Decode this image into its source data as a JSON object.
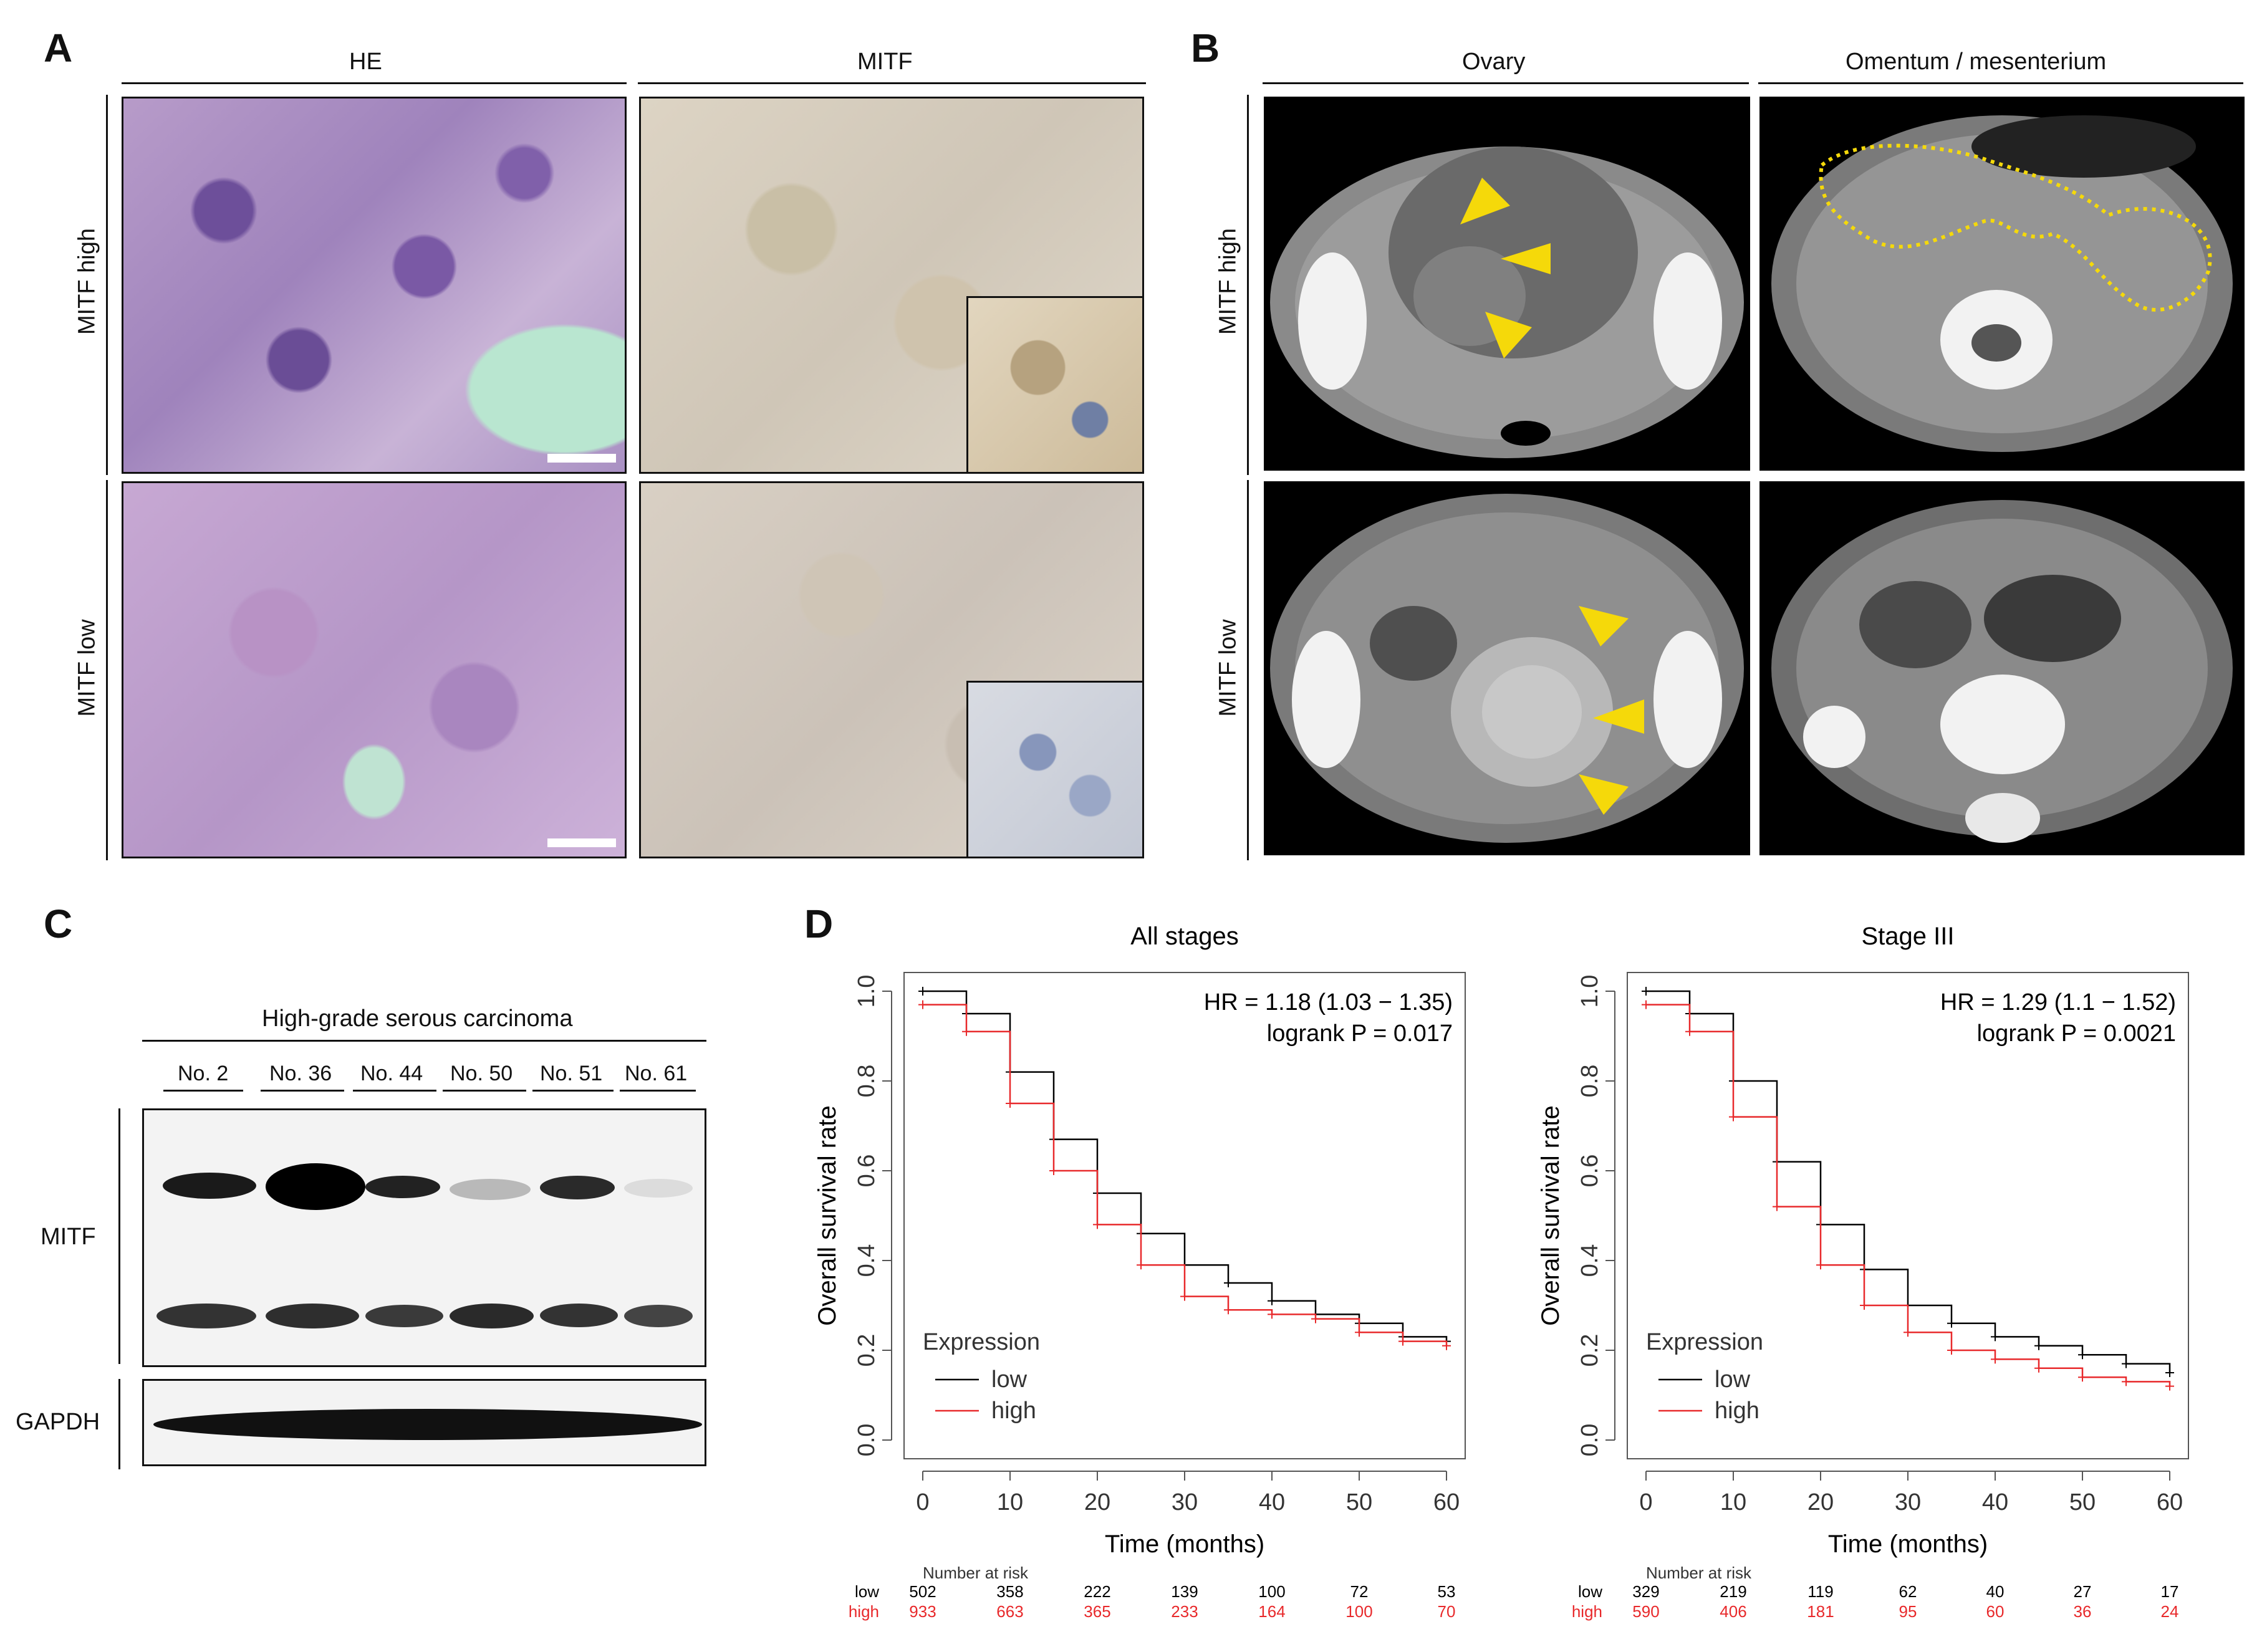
{
  "panels": {
    "a": {
      "letter": "A",
      "col_headers": [
        "HE",
        "MITF"
      ],
      "row_labels": [
        "MITF high",
        "MITF low"
      ]
    },
    "b": {
      "letter": "B",
      "col_headers": [
        "Ovary",
        "Omentum / mesenterium"
      ],
      "row_labels": [
        "MITF high",
        "MITF low"
      ]
    },
    "c": {
      "letter": "C",
      "header": "High-grade serous carcinoma",
      "samples": [
        "No. 2",
        "No. 36",
        "No. 44",
        "No. 50",
        "No. 51",
        "No. 61"
      ],
      "mitf_label": "MITF",
      "gapdh_label": "GAPDH"
    },
    "d": {
      "letter": "D"
    }
  },
  "chart_data": [
    {
      "type": "line",
      "title": "All stages",
      "xlabel": "Time (months)",
      "ylabel": "Overall survival rate",
      "xlim": [
        0,
        60
      ],
      "ylim": [
        0,
        1
      ],
      "xticks": [
        "0",
        "10",
        "20",
        "30",
        "40",
        "50",
        "60"
      ],
      "yticks": [
        "0.0",
        "0.2",
        "0.4",
        "0.6",
        "0.8",
        "1.0"
      ],
      "hr_text": "HR = 1.18 (1.03 − 1.35)",
      "p_text": "logrank P = 0.017",
      "legend_title": "Expression",
      "series": [
        {
          "name": "low",
          "color": "#000000",
          "x": [
            0,
            5,
            10,
            15,
            20,
            25,
            30,
            35,
            40,
            45,
            50,
            55,
            60
          ],
          "y": [
            1.0,
            0.95,
            0.82,
            0.67,
            0.55,
            0.46,
            0.39,
            0.35,
            0.31,
            0.28,
            0.26,
            0.23,
            0.22
          ]
        },
        {
          "name": "high",
          "color": "#e8292b",
          "x": [
            0,
            5,
            10,
            15,
            20,
            25,
            30,
            35,
            40,
            45,
            50,
            55,
            60
          ],
          "y": [
            0.97,
            0.91,
            0.75,
            0.6,
            0.48,
            0.39,
            0.32,
            0.29,
            0.28,
            0.27,
            0.24,
            0.22,
            0.21
          ]
        }
      ],
      "risk_header": "Number at risk",
      "risk_rows": [
        {
          "name": "low",
          "values": [
            "502",
            "358",
            "222",
            "139",
            "100",
            "72",
            "53"
          ]
        },
        {
          "name": "high",
          "values": [
            "933",
            "663",
            "365",
            "233",
            "164",
            "100",
            "70"
          ]
        }
      ]
    },
    {
      "type": "line",
      "title": "Stage III",
      "xlabel": "Time (months)",
      "ylabel": "Overall survival rate",
      "xlim": [
        0,
        60
      ],
      "ylim": [
        0,
        1
      ],
      "xticks": [
        "0",
        "10",
        "20",
        "30",
        "40",
        "50",
        "60"
      ],
      "yticks": [
        "0.0",
        "0.2",
        "0.4",
        "0.6",
        "0.8",
        "1.0"
      ],
      "hr_text": "HR = 1.29 (1.1 − 1.52)",
      "p_text": "logrank P = 0.0021",
      "legend_title": "Expression",
      "series": [
        {
          "name": "low",
          "color": "#000000",
          "x": [
            0,
            5,
            10,
            15,
            20,
            25,
            30,
            35,
            40,
            45,
            50,
            55,
            60
          ],
          "y": [
            1.0,
            0.95,
            0.8,
            0.62,
            0.48,
            0.38,
            0.3,
            0.26,
            0.23,
            0.21,
            0.19,
            0.17,
            0.15
          ]
        },
        {
          "name": "high",
          "color": "#e8292b",
          "x": [
            0,
            5,
            10,
            15,
            20,
            25,
            30,
            35,
            40,
            45,
            50,
            55,
            60
          ],
          "y": [
            0.97,
            0.91,
            0.72,
            0.52,
            0.39,
            0.3,
            0.24,
            0.2,
            0.18,
            0.16,
            0.14,
            0.13,
            0.12
          ]
        }
      ],
      "risk_header": "Number at risk",
      "risk_rows": [
        {
          "name": "low",
          "values": [
            "329",
            "219",
            "119",
            "62",
            "40",
            "27",
            "17"
          ]
        },
        {
          "name": "high",
          "values": [
            "590",
            "406",
            "181",
            "95",
            "60",
            "36",
            "24"
          ]
        }
      ]
    }
  ]
}
